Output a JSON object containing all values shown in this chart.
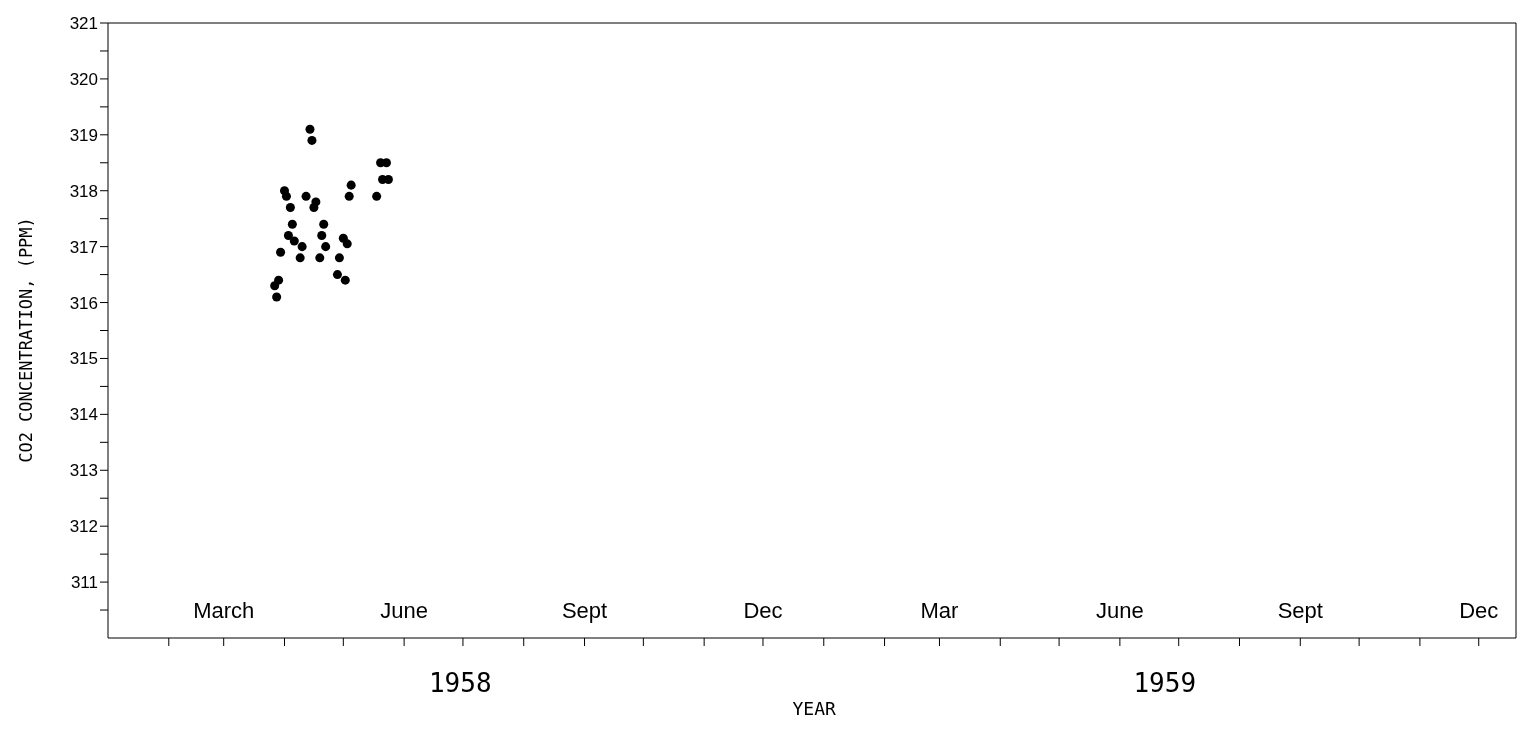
{
  "chart_data": {
    "type": "scatter",
    "xlabel": "YEAR",
    "ylabel": "CO2 CONCENTRATION, (PPM)",
    "color": "#000000",
    "marker": "circle",
    "annotations": [
      "1958",
      "1959"
    ],
    "x": [
      "1958-03-27",
      "1958-03-28",
      "1958-03-29",
      "1958-03-30",
      "1958-04-01",
      "1958-04-02",
      "1958-04-03",
      "1958-04-04",
      "1958-04-05",
      "1958-04-06",
      "1958-04-09",
      "1958-04-10",
      "1958-04-12",
      "1958-04-14",
      "1958-04-15",
      "1958-04-16",
      "1958-04-17",
      "1958-04-19",
      "1958-04-20",
      "1958-04-21",
      "1958-04-22",
      "1958-04-28",
      "1958-04-29",
      "1958-05-01",
      "1958-05-02",
      "1958-05-03",
      "1958-05-04",
      "1958-05-05",
      "1958-05-18",
      "1958-05-20",
      "1958-05-21",
      "1958-05-23",
      "1958-05-24"
    ],
    "values": [
      316.3,
      316.1,
      316.4,
      316.9,
      318.0,
      317.9,
      317.2,
      317.7,
      317.4,
      317.1,
      316.8,
      317.0,
      317.9,
      319.1,
      318.9,
      317.7,
      317.8,
      316.8,
      317.2,
      317.4,
      317.0,
      316.5,
      316.8,
      317.15,
      316.4,
      317.05,
      317.9,
      318.1,
      317.9,
      318.5,
      318.2,
      318.5,
      318.2
    ],
    "xlim": [
      "1958-01-01",
      "1959-12-20"
    ],
    "xticks": [
      {
        "value": "1958-02-01",
        "label": null
      },
      {
        "value": "1958-03-01",
        "label": "March"
      },
      {
        "value": "1958-04-01",
        "label": null
      },
      {
        "value": "1958-05-01",
        "label": null
      },
      {
        "value": "1958-06-01",
        "label": "June"
      },
      {
        "value": "1958-07-01",
        "label": null
      },
      {
        "value": "1958-08-01",
        "label": null
      },
      {
        "value": "1958-09-01",
        "label": "Sept"
      },
      {
        "value": "1958-10-01",
        "label": null
      },
      {
        "value": "1958-11-01",
        "label": null
      },
      {
        "value": "1958-12-01",
        "label": "Dec"
      },
      {
        "value": "1959-01-01",
        "label": null
      },
      {
        "value": "1959-02-01",
        "label": null
      },
      {
        "value": "1959-03-01",
        "label": "Mar"
      },
      {
        "value": "1959-04-01",
        "label": null
      },
      {
        "value": "1959-05-01",
        "label": null
      },
      {
        "value": "1959-06-01",
        "label": "June"
      },
      {
        "value": "1959-07-01",
        "label": null
      },
      {
        "value": "1959-08-01",
        "label": null
      },
      {
        "value": "1959-09-01",
        "label": "Sept"
      },
      {
        "value": "1959-10-01",
        "label": null
      },
      {
        "value": "1959-11-01",
        "label": null
      },
      {
        "value": "1959-12-01",
        "label": "Dec"
      }
    ],
    "ylim": [
      310,
      321
    ],
    "yticks": [
      {
        "value": 310.5,
        "label": null
      },
      311,
      {
        "value": 311.5,
        "label": null
      },
      312,
      {
        "value": 312.5,
        "label": null
      },
      313,
      {
        "value": 313.5,
        "label": null
      },
      314,
      {
        "value": 314.5,
        "label": null
      },
      315,
      {
        "value": 315.5,
        "label": null
      },
      316,
      {
        "value": 316.5,
        "label": null
      },
      317,
      {
        "value": 317.5,
        "label": null
      },
      318,
      {
        "value": 318.5,
        "label": null
      },
      319,
      {
        "value": 319.5,
        "label": null
      },
      320,
      {
        "value": 320.5,
        "label": null
      },
      321
    ],
    "grid": false
  }
}
